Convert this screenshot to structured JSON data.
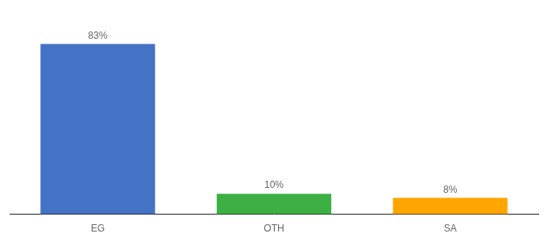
{
  "chart_data": {
    "type": "bar",
    "categories": [
      "EG",
      "OTH",
      "SA"
    ],
    "values": [
      83,
      10,
      8
    ],
    "value_labels": [
      "83%",
      "10%",
      "8%"
    ],
    "colors": [
      "#4472C4",
      "#3CB043",
      "#FFA500"
    ],
    "ylim": [
      0,
      95
    ],
    "grid": false,
    "data_labels": true,
    "tick_labels": "x"
  }
}
